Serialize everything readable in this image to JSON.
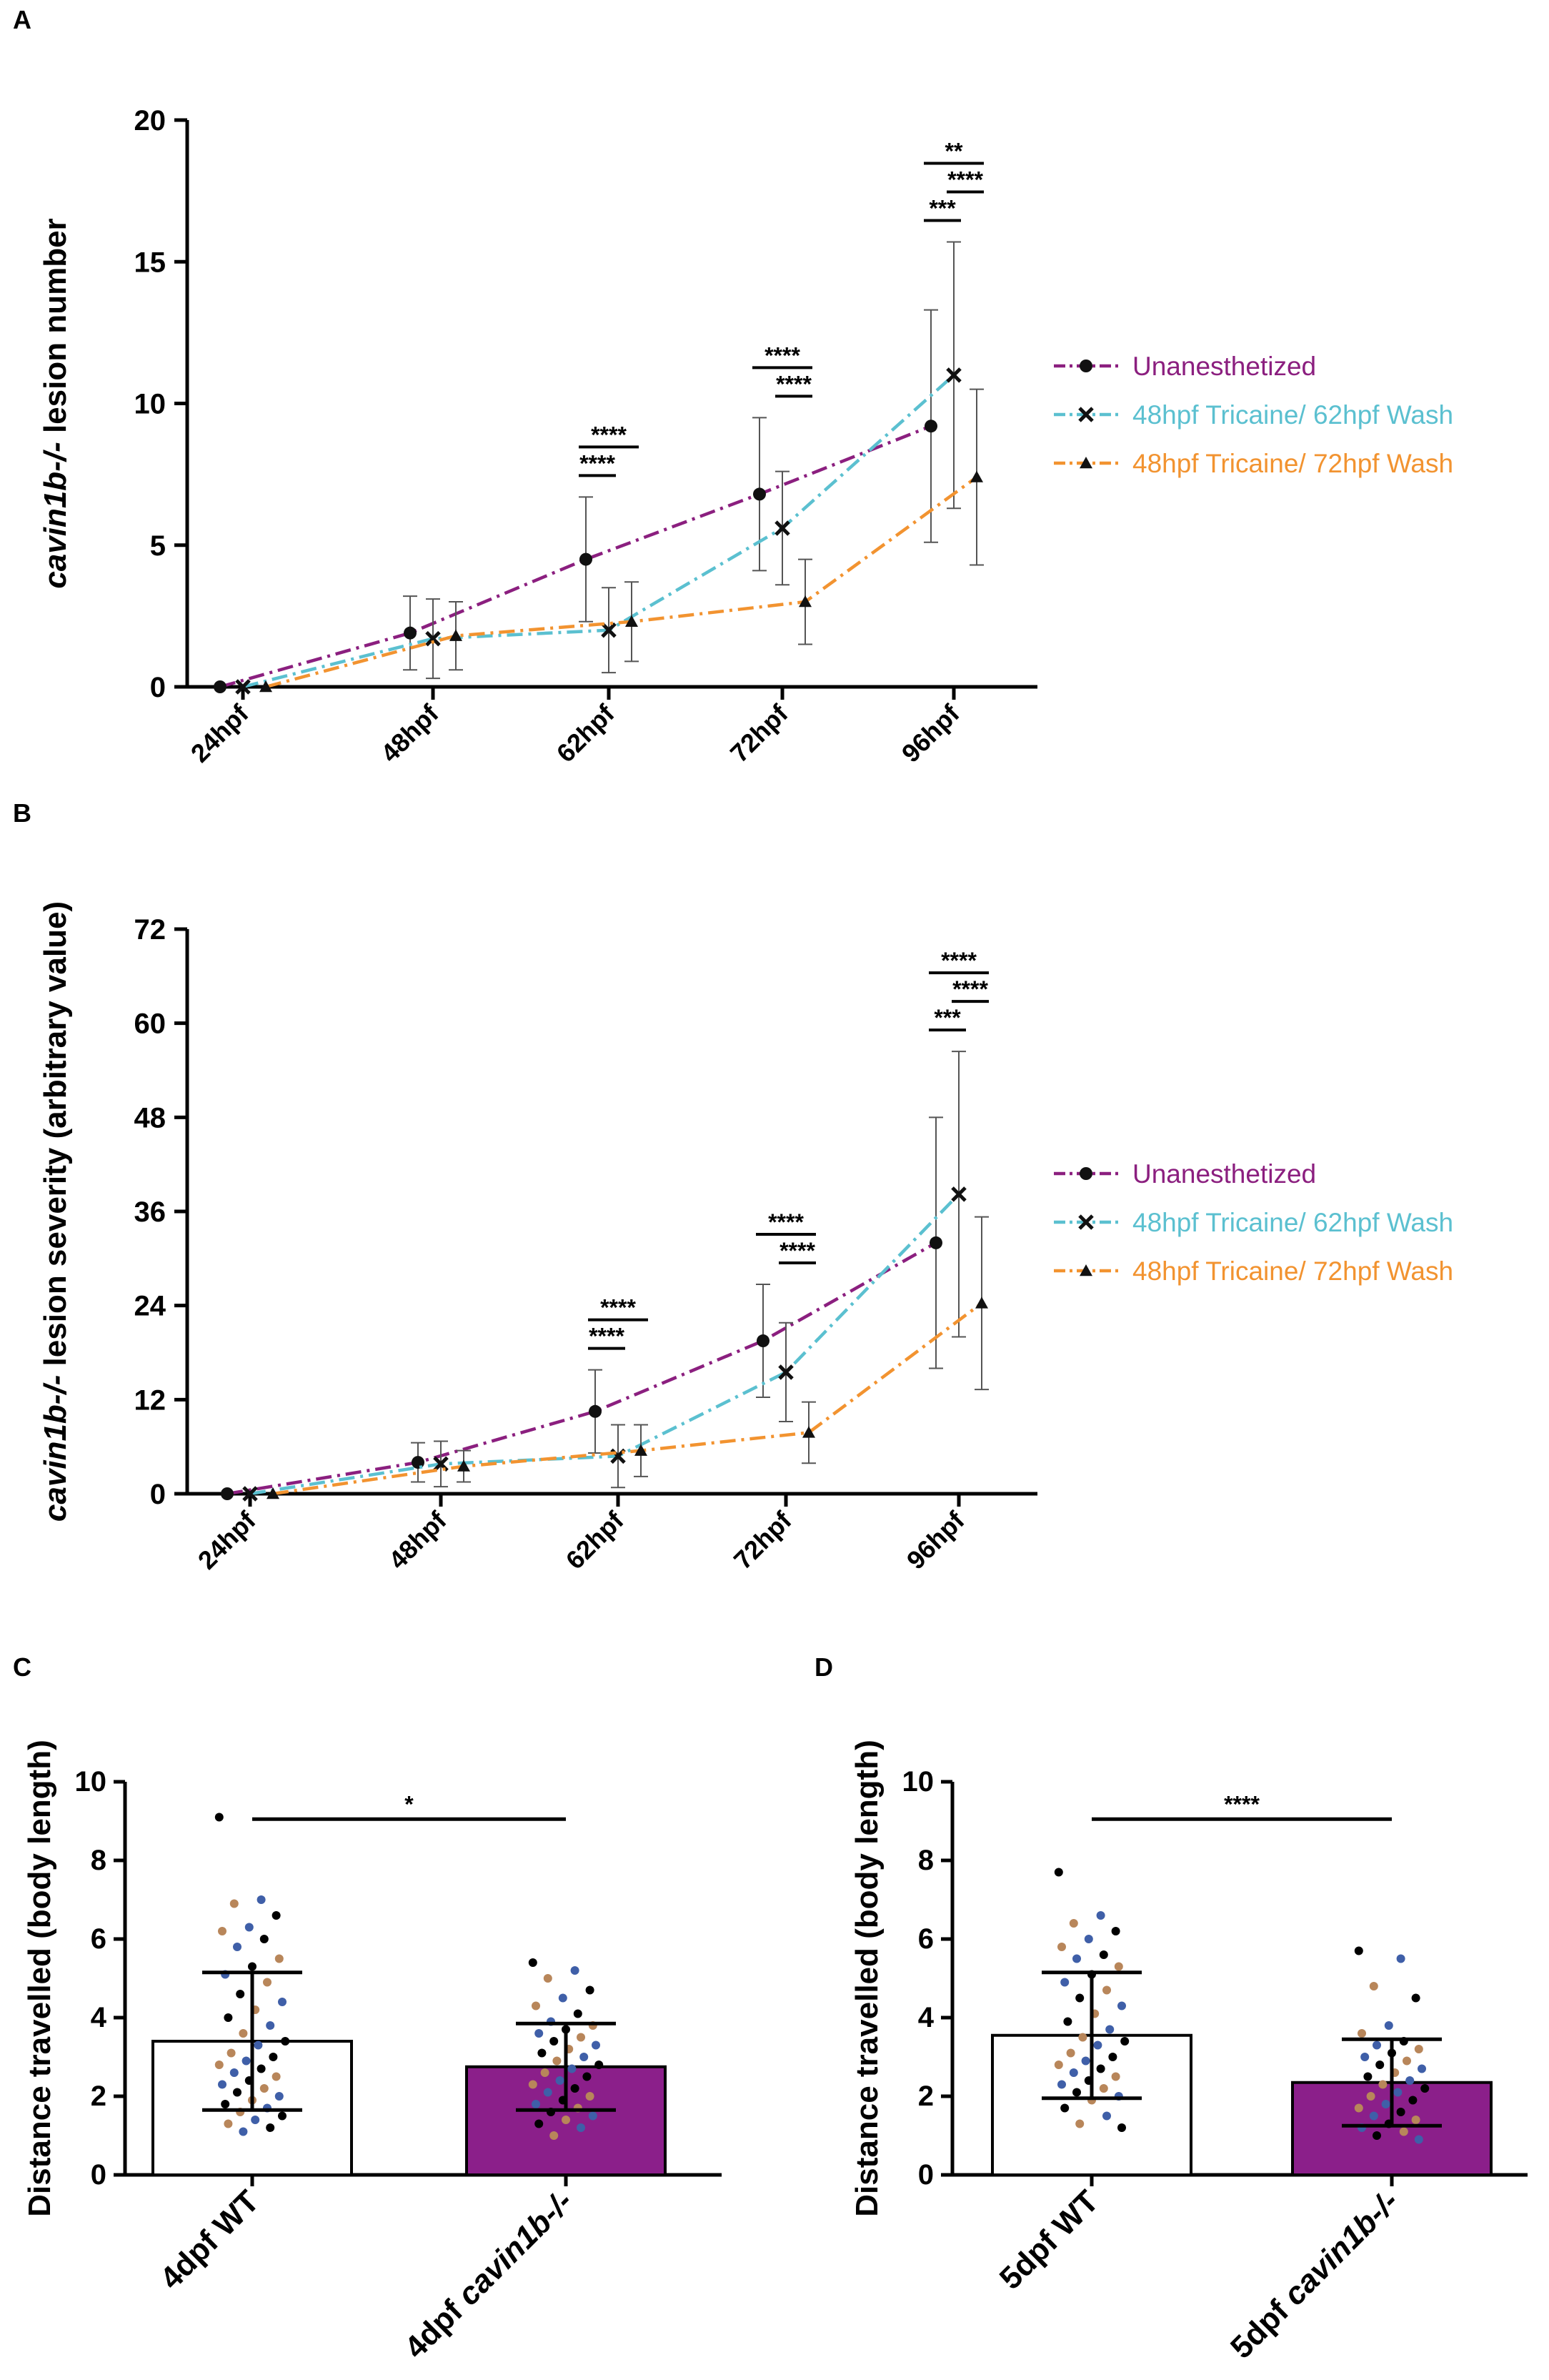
{
  "figure": {
    "panel_letters": [
      "A",
      "B",
      "C",
      "D"
    ]
  },
  "colors": {
    "unanesthetized": "#8B1F7F",
    "wash62": "#5BC0D0",
    "wash72": "#F29330",
    "bar_filled": "#8B1F8A",
    "axis": "#000000",
    "error_bar": "#555555",
    "dot_colors": [
      "#000000",
      "#3F5FA8",
      "#B8865A"
    ]
  },
  "chart_data": [
    {
      "panel": "A",
      "type": "line",
      "ylabel_italic": "cavin1b-/-",
      "ylabel_rest": " lesion number",
      "ylim": [
        0,
        20
      ],
      "yticks": [
        "0",
        "5",
        "10",
        "15",
        "20"
      ],
      "categories": [
        "24hpf",
        "48hpf",
        "62hpf",
        "72hpf",
        "96hpf"
      ],
      "legend_placement": "right",
      "series": [
        {
          "name": "Unanesthetized",
          "marker": "circle",
          "values": [
            0,
            1.9,
            4.5,
            6.8,
            9.2
          ],
          "err": [
            0,
            1.3,
            2.2,
            2.7,
            4.1
          ]
        },
        {
          "name": "48hpf Tricaine/ 62hpf Wash",
          "marker": "x",
          "values": [
            0,
            1.7,
            2.0,
            5.6,
            11.0
          ],
          "err": [
            0,
            1.4,
            1.5,
            2.0,
            4.7
          ]
        },
        {
          "name": "48hpf Tricaine/ 72hpf Wash",
          "marker": "triangle",
          "values": [
            0,
            1.8,
            2.3,
            3.0,
            7.4
          ],
          "err": [
            0,
            1.2,
            1.4,
            1.5,
            3.1
          ]
        }
      ],
      "significance": [
        {
          "label": "****",
          "cat": 2,
          "from": 0,
          "to": 1,
          "level": 0
        },
        {
          "label": "****",
          "cat": 2,
          "from": 0,
          "to": 2,
          "level": 1
        },
        {
          "label": "****",
          "cat": 3,
          "from": 1,
          "to": 2,
          "level": 0
        },
        {
          "label": "****",
          "cat": 3,
          "from": 0,
          "to": 2,
          "level": 1
        },
        {
          "label": "***",
          "cat": 4,
          "from": 0,
          "to": 1,
          "level": 0
        },
        {
          "label": "****",
          "cat": 4,
          "from": 1,
          "to": 2,
          "level": 1
        },
        {
          "label": "**",
          "cat": 4,
          "from": 0,
          "to": 2,
          "level": 2
        }
      ]
    },
    {
      "panel": "B",
      "type": "line",
      "ylabel_italic": "cavin1b-/-",
      "ylabel_rest": " lesion severity (arbitrary value)",
      "ylim": [
        0,
        72
      ],
      "yticks": [
        "0",
        "12",
        "24",
        "36",
        "48",
        "60",
        "72"
      ],
      "categories": [
        "24hpf",
        "48hpf",
        "62hpf",
        "72hpf",
        "96hpf"
      ],
      "legend_placement": "right",
      "series": [
        {
          "name": "Unanesthetized",
          "marker": "circle",
          "values": [
            0,
            4.0,
            10.5,
            19.5,
            32.0
          ],
          "err": [
            0,
            2.5,
            5.3,
            7.2,
            16.0
          ]
        },
        {
          "name": "48hpf Tricaine/ 62hpf Wash",
          "marker": "x",
          "values": [
            0,
            3.8,
            4.8,
            15.5,
            38.2
          ],
          "err": [
            0,
            2.9,
            4.0,
            6.3,
            18.2
          ]
        },
        {
          "name": "48hpf Tricaine/ 72hpf Wash",
          "marker": "triangle",
          "values": [
            0,
            3.5,
            5.5,
            7.8,
            24.3
          ],
          "err": [
            0,
            2.0,
            3.3,
            3.9,
            11.0
          ]
        }
      ],
      "significance": [
        {
          "label": "****",
          "cat": 2,
          "from": 0,
          "to": 1,
          "level": 0
        },
        {
          "label": "****",
          "cat": 2,
          "from": 0,
          "to": 2,
          "level": 1
        },
        {
          "label": "****",
          "cat": 3,
          "from": 1,
          "to": 2,
          "level": 0
        },
        {
          "label": "****",
          "cat": 3,
          "from": 0,
          "to": 2,
          "level": 1
        },
        {
          "label": "***",
          "cat": 4,
          "from": 0,
          "to": 1,
          "level": 0
        },
        {
          "label": "****",
          "cat": 4,
          "from": 1,
          "to": 2,
          "level": 1
        },
        {
          "label": "****",
          "cat": 4,
          "from": 0,
          "to": 2,
          "level": 2
        }
      ]
    },
    {
      "panel": "C",
      "type": "bar",
      "ylabel": "Distance travelled (body length)",
      "ylim": [
        0,
        10
      ],
      "yticks": [
        "0",
        "2",
        "4",
        "6",
        "8",
        "10"
      ],
      "categories": [
        {
          "plain": "4dpf WT",
          "italic": ""
        },
        {
          "plain": "4dpf ",
          "italic": "cavin1b-/-"
        }
      ],
      "values": [
        3.4,
        2.75
      ],
      "sd": [
        1.75,
        1.1
      ],
      "significance": "*",
      "points": [
        [
          9.1,
          7.0,
          6.9,
          6.6,
          6.3,
          6.2,
          6.0,
          5.8,
          5.5,
          5.3,
          5.1,
          4.9,
          4.6,
          4.4,
          4.2,
          4.0,
          3.8,
          3.6,
          3.4,
          3.3,
          3.1,
          3.0,
          2.9,
          2.8,
          2.7,
          2.6,
          2.5,
          2.4,
          2.3,
          2.2,
          2.1,
          2.0,
          1.9,
          1.8,
          1.7,
          1.6,
          1.5,
          1.4,
          1.3,
          1.2,
          1.1
        ],
        [
          5.4,
          5.2,
          5.0,
          4.7,
          4.5,
          4.3,
          4.1,
          3.9,
          3.8,
          3.7,
          3.6,
          3.5,
          3.4,
          3.3,
          3.2,
          3.1,
          3.0,
          2.9,
          2.8,
          2.7,
          2.6,
          2.5,
          2.4,
          2.3,
          2.2,
          2.1,
          2.0,
          1.9,
          1.8,
          1.7,
          1.6,
          1.5,
          1.4,
          1.3,
          1.2,
          1.0
        ]
      ]
    },
    {
      "panel": "D",
      "type": "bar",
      "ylabel": "Distance travelled (body length)",
      "ylim": [
        0,
        10
      ],
      "yticks": [
        "0",
        "2",
        "4",
        "6",
        "8",
        "10"
      ],
      "categories": [
        {
          "plain": "5dpf WT",
          "italic": ""
        },
        {
          "plain": "5dpf ",
          "italic": "cavin1b-/-"
        }
      ],
      "values": [
        3.55,
        2.35
      ],
      "sd": [
        1.6,
        1.1
      ],
      "significance": "****",
      "points": [
        [
          7.7,
          6.6,
          6.4,
          6.2,
          6.0,
          5.8,
          5.6,
          5.5,
          5.3,
          5.1,
          4.9,
          4.7,
          4.5,
          4.3,
          4.1,
          3.9,
          3.7,
          3.5,
          3.4,
          3.3,
          3.1,
          3.0,
          2.9,
          2.8,
          2.7,
          2.6,
          2.5,
          2.4,
          2.3,
          2.2,
          2.1,
          2.0,
          1.9,
          1.7,
          1.5,
          1.3,
          1.2
        ],
        [
          5.7,
          5.5,
          4.8,
          4.5,
          3.8,
          3.6,
          3.4,
          3.3,
          3.2,
          3.1,
          3.0,
          2.9,
          2.8,
          2.7,
          2.6,
          2.5,
          2.4,
          2.3,
          2.2,
          2.1,
          2.0,
          1.9,
          1.8,
          1.7,
          1.6,
          1.5,
          1.4,
          1.3,
          1.2,
          1.1,
          1.0,
          0.9
        ]
      ]
    }
  ]
}
